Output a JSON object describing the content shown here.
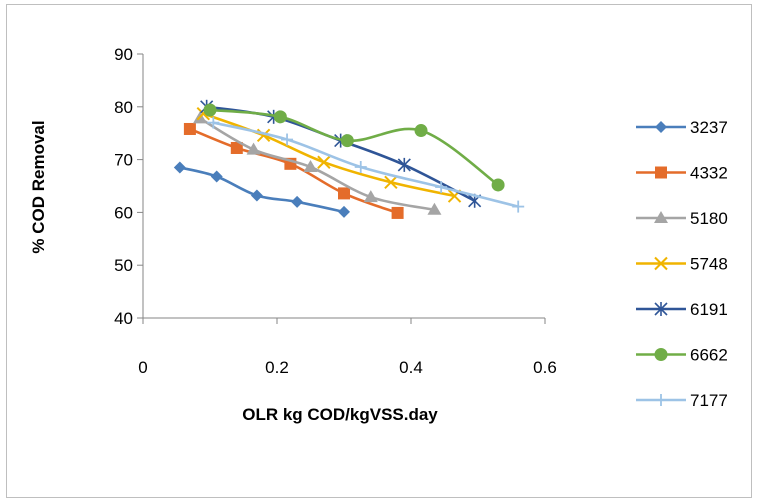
{
  "chart_data": {
    "type": "line",
    "title": "",
    "xlabel": "OLR kg COD/kgVSS.day",
    "ylabel": "% COD Removal",
    "xlim": [
      0,
      0.6
    ],
    "ylim": [
      40,
      90
    ],
    "xticks": [
      0,
      0.2,
      0.4,
      0.6
    ],
    "yticks": [
      40,
      50,
      60,
      70,
      80,
      90
    ],
    "grid": false,
    "legend": "right",
    "smooth": true,
    "series": [
      {
        "name": "3237",
        "color": "#4a7ebb",
        "marker": "diamond",
        "x": [
          0.055,
          0.11,
          0.17,
          0.23,
          0.3
        ],
        "y": [
          68.5,
          66.8,
          63.2,
          62.0,
          60.1
        ]
      },
      {
        "name": "4332",
        "color": "#e46c2a",
        "marker": "square",
        "x": [
          0.07,
          0.14,
          0.22,
          0.3,
          0.38
        ],
        "y": [
          75.8,
          72.2,
          69.2,
          63.6,
          59.9
        ]
      },
      {
        "name": "5180",
        "color": "#a5a5a5",
        "marker": "triangle",
        "x": [
          0.085,
          0.165,
          0.25,
          0.34,
          0.435
        ],
        "y": [
          77.8,
          71.9,
          68.6,
          62.9,
          60.5
        ]
      },
      {
        "name": "5748",
        "color": "#f0b400",
        "marker": "x",
        "x": [
          0.09,
          0.18,
          0.27,
          0.37,
          0.465
        ],
        "y": [
          78.7,
          74.6,
          69.5,
          65.7,
          63.1
        ]
      },
      {
        "name": "6191",
        "color": "#2f5597",
        "marker": "star",
        "x": [
          0.095,
          0.195,
          0.295,
          0.39,
          0.495
        ],
        "y": [
          80.0,
          78.1,
          73.6,
          69.0,
          62.2
        ]
      },
      {
        "name": "6662",
        "color": "#70ad47",
        "marker": "circle",
        "x": [
          0.1,
          0.205,
          0.305,
          0.415,
          0.53
        ],
        "y": [
          79.4,
          78.1,
          73.6,
          75.5,
          65.2
        ]
      },
      {
        "name": "7177",
        "color": "#9dc3e6",
        "marker": "plus",
        "x": [
          0.105,
          0.215,
          0.325,
          0.445,
          0.56
        ],
        "y": [
          77.0,
          73.8,
          68.6,
          64.8,
          61.1
        ]
      }
    ]
  }
}
